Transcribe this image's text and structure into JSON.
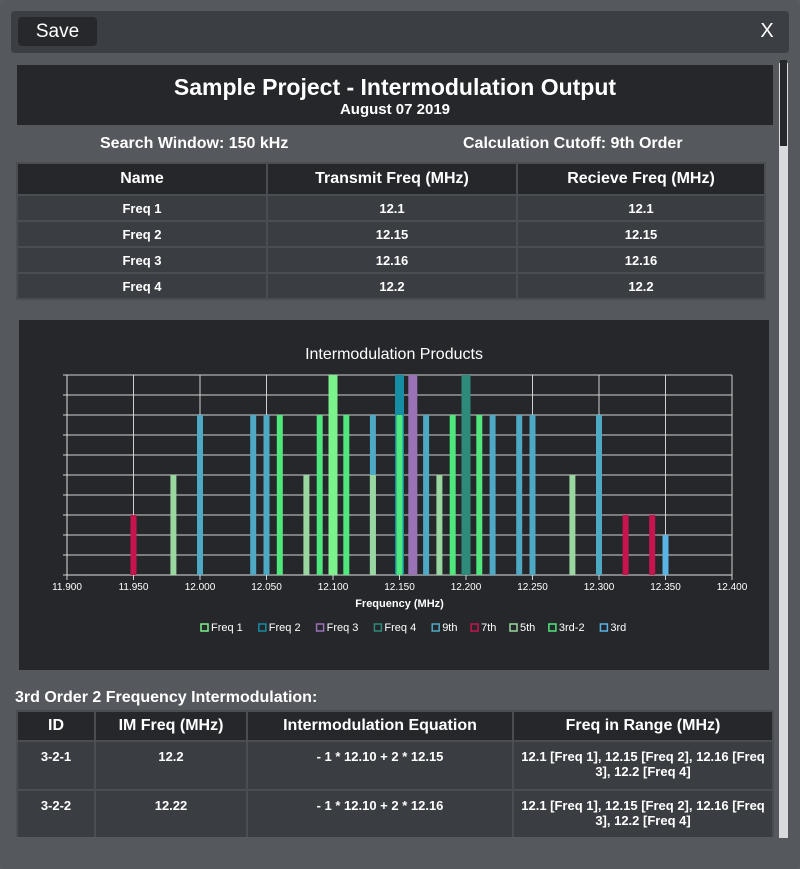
{
  "toolbar": {
    "save_label": "Save",
    "close_label": "X"
  },
  "report": {
    "title": "Sample Project - Intermodulation Output",
    "date": "August 07 2019",
    "search_window": "Search Window: 150 kHz",
    "calculation_cutoff": "Calculation Cutoff: 9th Order"
  },
  "freq_table": {
    "headers": [
      "Name",
      "Transmit Freq (MHz)",
      "Recieve Freq (MHz)"
    ],
    "rows": [
      [
        "Freq 1",
        "12.1",
        "12.1"
      ],
      [
        "Freq 2",
        "12.15",
        "12.15"
      ],
      [
        "Freq 3",
        "12.16",
        "12.16"
      ],
      [
        "Freq 4",
        "12.2",
        "12.2"
      ]
    ]
  },
  "chart_data": {
    "type": "bar",
    "title": "Intermodulation Products",
    "xlabel": "Frequency (MHz)",
    "ylabel": "",
    "xlim": [
      11.9,
      12.4
    ],
    "ylim": [
      0,
      10
    ],
    "x_ticks": [
      "11.900",
      "11.950",
      "12.000",
      "12.050",
      "12.100",
      "12.150",
      "12.200",
      "12.250",
      "12.300",
      "12.350",
      "12.400"
    ],
    "grid": true,
    "legend_placement": "bottom",
    "series": [
      {
        "name": "Freq 1",
        "color": "#7cf28c",
        "points": [
          [
            12.1,
            10
          ]
        ]
      },
      {
        "name": "Freq 2",
        "color": "#158ea3",
        "points": [
          [
            12.15,
            10
          ]
        ]
      },
      {
        "name": "Freq 3",
        "color": "#9a72b6",
        "points": [
          [
            12.16,
            10
          ]
        ]
      },
      {
        "name": "Freq 4",
        "color": "#2e8a7a",
        "points": [
          [
            12.2,
            10
          ]
        ]
      },
      {
        "name": "9th",
        "color": "#4ea9c5",
        "points": [
          [
            12.0,
            8
          ],
          [
            12.04,
            8
          ],
          [
            12.05,
            8
          ],
          [
            12.13,
            8
          ],
          [
            12.17,
            8
          ],
          [
            12.22,
            8
          ],
          [
            12.24,
            8
          ],
          [
            12.25,
            8
          ],
          [
            12.3,
            8
          ]
        ]
      },
      {
        "name": "7th",
        "color": "#c8144e",
        "points": [
          [
            11.95,
            3
          ],
          [
            12.32,
            3
          ],
          [
            12.34,
            3
          ]
        ]
      },
      {
        "name": "5th",
        "color": "#99d6a0",
        "points": [
          [
            11.98,
            5
          ],
          [
            12.08,
            5
          ],
          [
            12.13,
            5
          ],
          [
            12.18,
            5
          ],
          [
            12.28,
            5
          ]
        ]
      },
      {
        "name": "3rd-2",
        "color": "#4ee87c",
        "points": [
          [
            12.06,
            8
          ],
          [
            12.09,
            8
          ],
          [
            12.11,
            8
          ],
          [
            12.15,
            8
          ],
          [
            12.19,
            8
          ],
          [
            12.21,
            8
          ]
        ]
      },
      {
        "name": "3rd",
        "color": "#5ab4e6",
        "points": [
          [
            12.35,
            2
          ]
        ]
      }
    ]
  },
  "im_section": {
    "title": "3rd Order 2 Frequency Intermodulation:",
    "headers": [
      "ID",
      "IM Freq (MHz)",
      "Intermodulation Equation",
      "Freq in Range (MHz)"
    ],
    "rows": [
      [
        "3-2-1",
        "12.2",
        "- 1 * 12.10 + 2 * 12.15",
        "12.1 [Freq 1], 12.15 [Freq 2], 12.16 [Freq 3], 12.2 [Freq 4]"
      ],
      [
        "3-2-2",
        "12.22",
        "- 1 * 12.10 + 2 * 12.16",
        "12.1 [Freq 1], 12.15 [Freq 2], 12.16 [Freq 3], 12.2 [Freq 4]"
      ]
    ]
  }
}
